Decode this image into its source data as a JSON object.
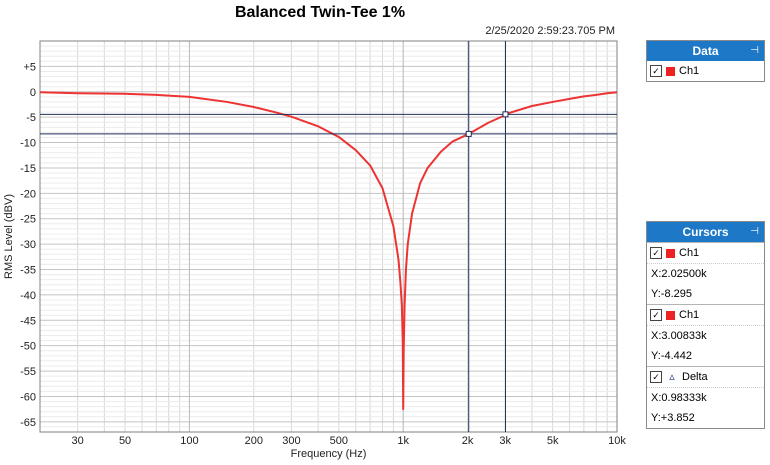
{
  "timestamp": "2/25/2020 2:59:23.705 PM",
  "chart_data": {
    "type": "line",
    "title": "Balanced Twin-Tee 1%",
    "xlabel": "Frequency (Hz)",
    "ylabel": "RMS Level (dBV)",
    "x_scale": "log",
    "xlim": [
      20,
      10000
    ],
    "ylim": [
      -67,
      10
    ],
    "grid": true,
    "x_ticks": [
      {
        "value": 30,
        "label": "30"
      },
      {
        "value": 50,
        "label": "50"
      },
      {
        "value": 100,
        "label": "100"
      },
      {
        "value": 200,
        "label": "200"
      },
      {
        "value": 300,
        "label": "300"
      },
      {
        "value": 500,
        "label": "500"
      },
      {
        "value": 1000,
        "label": "1k"
      },
      {
        "value": 2000,
        "label": "2k"
      },
      {
        "value": 3000,
        "label": "3k"
      },
      {
        "value": 5000,
        "label": "5k"
      },
      {
        "value": 10000,
        "label": "10k"
      }
    ],
    "y_ticks": [
      {
        "value": 5,
        "label": "+5"
      },
      {
        "value": 0,
        "label": "0"
      },
      {
        "value": -5,
        "label": "-5"
      },
      {
        "value": -10,
        "label": "-10"
      },
      {
        "value": -15,
        "label": "-15"
      },
      {
        "value": -20,
        "label": "-20"
      },
      {
        "value": -25,
        "label": "-25"
      },
      {
        "value": -30,
        "label": "-30"
      },
      {
        "value": -35,
        "label": "-35"
      },
      {
        "value": -40,
        "label": "-40"
      },
      {
        "value": -45,
        "label": "-45"
      },
      {
        "value": -50,
        "label": "-50"
      },
      {
        "value": -55,
        "label": "-55"
      },
      {
        "value": -60,
        "label": "-60"
      },
      {
        "value": -65,
        "label": "-65"
      }
    ],
    "series": [
      {
        "color": "#ee3333",
        "x": [
          20,
          30,
          50,
          70,
          100,
          150,
          200,
          250,
          300,
          400,
          500,
          600,
          700,
          800,
          900,
          950,
          970,
          985,
          995,
          1000,
          1005,
          1015,
          1030,
          1050,
          1100,
          1200,
          1300,
          1500,
          1700,
          2000,
          2025,
          2500,
          3000,
          3008,
          4000,
          5000,
          6000,
          7000,
          8000,
          9000,
          10000
        ],
        "y": [
          -0.1,
          -0.3,
          -0.4,
          -0.6,
          -1.0,
          -2.0,
          -3.0,
          -4.0,
          -4.9,
          -6.8,
          -8.9,
          -11.5,
          -14.5,
          -19.0,
          -26.5,
          -33.0,
          -37.5,
          -42.0,
          -49.0,
          -62.5,
          -51.0,
          -42.0,
          -35.0,
          -30.0,
          -24.0,
          -18.0,
          -15.0,
          -11.8,
          -9.8,
          -8.4,
          -8.3,
          -6.1,
          -4.6,
          -4.4,
          -2.8,
          -2.0,
          -1.4,
          -0.9,
          -0.6,
          -0.3,
          -0.1
        ]
      }
    ]
  },
  "data_panel": {
    "title": "Data",
    "pin": "⊣",
    "channel": "Ch1",
    "color": "#ee2222"
  },
  "cursors_panel": {
    "title": "Cursors",
    "pin": "⊣",
    "cursor1": {
      "label": "Ch1",
      "x_text": "X:2.02500k",
      "y_text": "Y:-8.295",
      "x": 2025,
      "y": -8.295
    },
    "cursor2": {
      "label": "Ch1",
      "x_text": "X:3.00833k",
      "y_text": "Y:-4.442",
      "x": 3008.33,
      "y": -4.442
    },
    "delta": {
      "label": "Delta",
      "x_text": "X:0.98333k",
      "y_text": "Y:+3.852"
    }
  }
}
